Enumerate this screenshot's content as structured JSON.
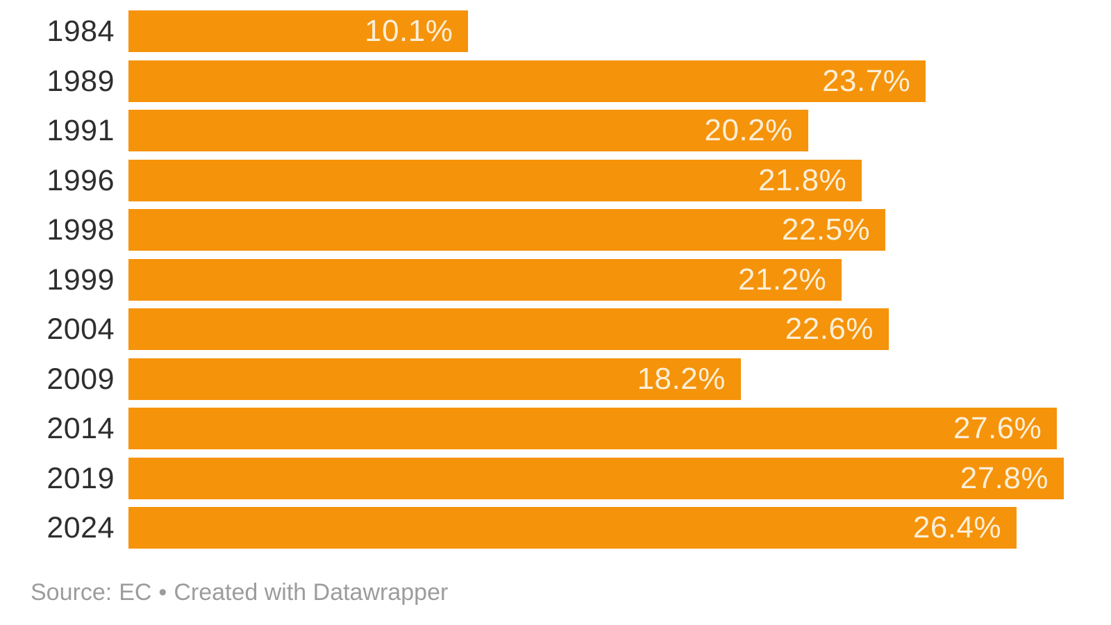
{
  "chart_data": {
    "type": "bar",
    "orientation": "horizontal",
    "title": "",
    "xlabel": "",
    "ylabel": "",
    "categories": [
      "1984",
      "1989",
      "1991",
      "1996",
      "1998",
      "1999",
      "2004",
      "2009",
      "2014",
      "2019",
      "2024"
    ],
    "values": [
      10.1,
      23.7,
      20.2,
      21.8,
      22.5,
      21.2,
      22.6,
      18.2,
      27.6,
      27.8,
      26.4
    ],
    "value_labels": [
      "10.1%",
      "23.7%",
      "20.2%",
      "21.8%",
      "22.5%",
      "21.2%",
      "22.6%",
      "18.2%",
      "27.6%",
      "27.8%",
      "26.4%"
    ],
    "xlim": [
      0,
      27.8
    ],
    "grid": false,
    "legend": false,
    "value_label_position": "inside-end",
    "bar_color": "#F5930B",
    "value_label_color": "#FBEFD7",
    "category_label_color": "#2E2E2E"
  },
  "footer": {
    "source_prefix": "Source:",
    "source_name": "EC",
    "separator": "•",
    "attribution": "Created with Datawrapper",
    "text_color": "#9C9C9C"
  }
}
